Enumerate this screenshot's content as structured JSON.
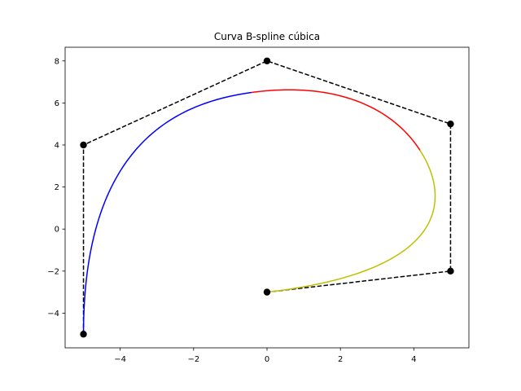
{
  "chart_data": {
    "type": "line",
    "title": "Curva B-spline cúbica",
    "xlabel": "",
    "ylabel": "",
    "xlim": [
      -5.5,
      5.5
    ],
    "ylim": [
      -5.65,
      8.65
    ],
    "xticks": [
      -4,
      -2,
      0,
      2,
      4
    ],
    "yticks": [
      -4,
      -2,
      0,
      2,
      4,
      6,
      8
    ],
    "xtick_labels": [
      "−4",
      "−2",
      "0",
      "2",
      "4"
    ],
    "ytick_labels": [
      "−4",
      "−2",
      "0",
      "2",
      "4",
      "6",
      "8"
    ],
    "grid": false,
    "control_polygon": {
      "style": "dashed",
      "color": "#000000",
      "x": [
        -5,
        -5,
        0,
        5,
        5,
        0
      ],
      "y": [
        -5,
        4,
        8,
        5,
        -2,
        -3
      ]
    },
    "spline_degree": 3,
    "knots": [
      0,
      0,
      0,
      0,
      1,
      2,
      3,
      3,
      3,
      3
    ],
    "segments": [
      {
        "color": "#0000ff",
        "span": 0
      },
      {
        "color": "#ff0000",
        "span": 1
      },
      {
        "color": "#bfbf00",
        "span": 2
      }
    ]
  }
}
